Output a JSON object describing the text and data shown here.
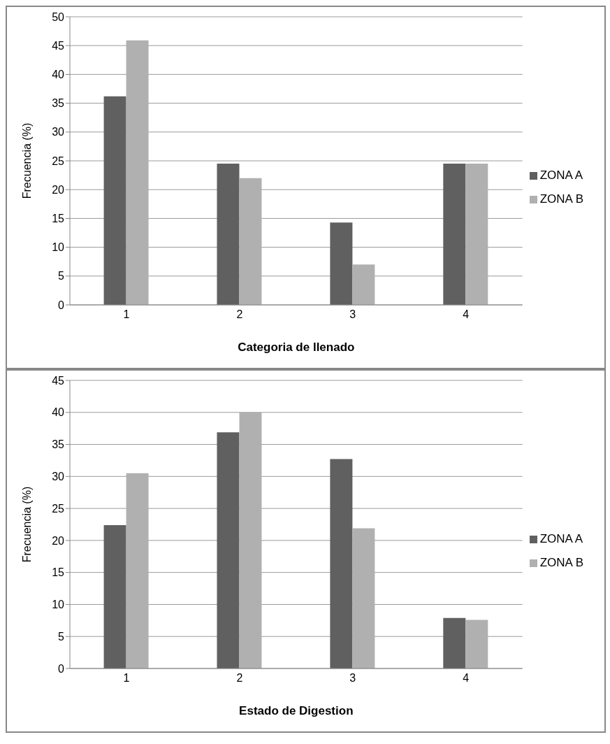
{
  "chart_data": [
    {
      "type": "bar",
      "xlabel": "Categoria de llenado",
      "ylabel": "Frecuencia (%)",
      "categories": [
        "1",
        "2",
        "3",
        "4"
      ],
      "series": [
        {
          "name": "ZONA A",
          "color": "#606060",
          "values": [
            36.2,
            24.5,
            14.3,
            24.5
          ]
        },
        {
          "name": "ZONA B",
          "color": "#b0b0b0",
          "values": [
            45.9,
            22.0,
            7.0,
            24.5
          ]
        }
      ],
      "ylim": [
        0,
        50
      ],
      "yticks": [
        0,
        5,
        10,
        15,
        20,
        25,
        30,
        35,
        40,
        45,
        50
      ],
      "grid": "y",
      "legend": "right"
    },
    {
      "type": "bar",
      "xlabel": "Estado de Digestion",
      "ylabel": "Frecuencia (%)",
      "categories": [
        "1",
        "2",
        "3",
        "4"
      ],
      "series": [
        {
          "name": "ZONA A",
          "color": "#606060",
          "values": [
            22.4,
            36.9,
            32.7,
            7.9
          ]
        },
        {
          "name": "ZONA B",
          "color": "#b0b0b0",
          "values": [
            30.5,
            40.0,
            21.9,
            7.6
          ]
        }
      ],
      "ylim": [
        0,
        45
      ],
      "yticks": [
        0,
        5,
        10,
        15,
        20,
        25,
        30,
        35,
        40,
        45
      ],
      "grid": "y",
      "legend": "right"
    }
  ]
}
